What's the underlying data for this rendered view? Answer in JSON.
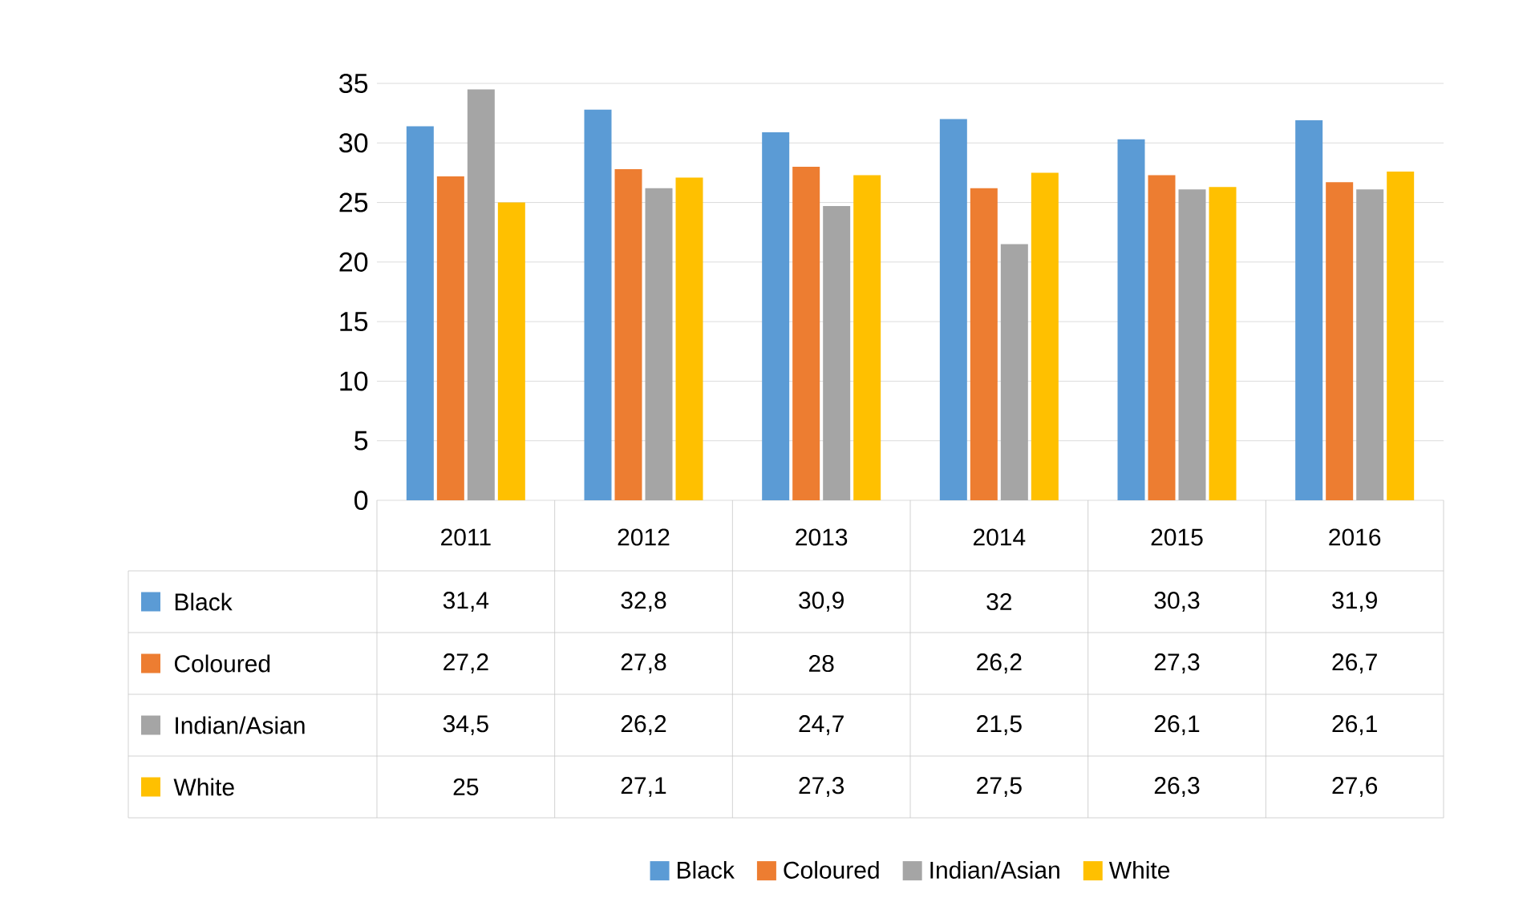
{
  "chart_data": {
    "type": "bar",
    "categories": [
      "2011",
      "2012",
      "2013",
      "2014",
      "2015",
      "2016"
    ],
    "series": [
      {
        "name": "Black",
        "color": "#5b9bd5",
        "values": [
          31.4,
          32.8,
          30.9,
          32,
          30.3,
          31.9
        ],
        "value_labels": [
          "31,4",
          "32,8",
          "30,9",
          "32",
          "30,3",
          "31,9"
        ]
      },
      {
        "name": "Coloured",
        "color": "#ed7d31",
        "values": [
          27.2,
          27.8,
          28,
          26.2,
          27.3,
          26.7
        ],
        "value_labels": [
          "27,2",
          "27,8",
          "28",
          "26,2",
          "27,3",
          "26,7"
        ]
      },
      {
        "name": "Indian/Asian",
        "color": "#a5a5a5",
        "values": [
          34.5,
          26.2,
          24.7,
          21.5,
          26.1,
          26.1
        ],
        "value_labels": [
          "34,5",
          "26,2",
          "24,7",
          "21,5",
          "26,1",
          "26,1"
        ]
      },
      {
        "name": "White",
        "color": "#ffc000",
        "values": [
          25,
          27.1,
          27.3,
          27.5,
          26.3,
          27.6
        ],
        "value_labels": [
          "25",
          "27,1",
          "27,3",
          "27,5",
          "26,3",
          "27,6"
        ]
      }
    ],
    "ylim": [
      0,
      35
    ],
    "yticks": [
      0,
      5,
      10,
      15,
      20,
      25,
      30,
      35
    ],
    "grid": "y",
    "legend": "bottom"
  }
}
